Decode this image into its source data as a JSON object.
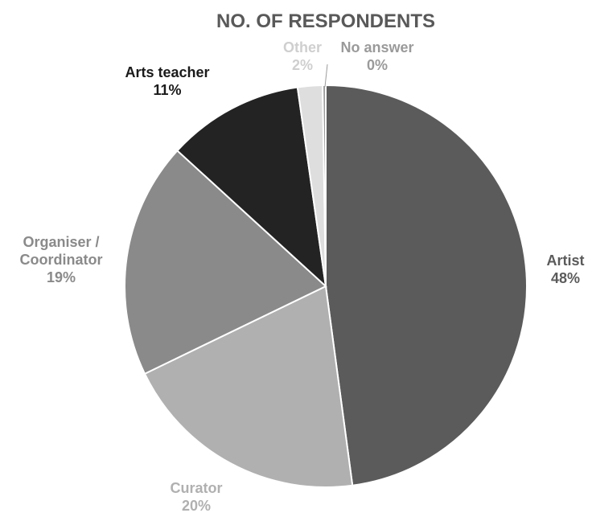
{
  "chart_data": {
    "type": "pie",
    "title": "NO. OF RESPONDENTS",
    "start_angle_deg": 0,
    "direction": "clockwise",
    "slices": [
      {
        "name": "Artist",
        "line1": "Artist",
        "line2": "",
        "pct": "48%",
        "value": 48,
        "color": "#5b5b5b",
        "label_color": "#5b5b5b"
      },
      {
        "name": "Curator",
        "line1": "Curator",
        "line2": "",
        "pct": "20%",
        "value": 20,
        "color": "#b0b0b0",
        "label_color": "#b0b0b0"
      },
      {
        "name": "Organiser / Coordinator",
        "line1": "Organiser /",
        "line2": "Coordinator",
        "pct": "19%",
        "value": 19,
        "color": "#8a8a8a",
        "label_color": "#8a8a8a"
      },
      {
        "name": "Arts teacher",
        "line1": "Arts teacher",
        "line2": "",
        "pct": "11%",
        "value": 11,
        "color": "#232323",
        "label_color": "#1a1a1a"
      },
      {
        "name": "Other",
        "line1": "Other",
        "line2": "",
        "pct": "2%",
        "value": 2,
        "color": "#dedede",
        "label_color": "#cfcfcf"
      },
      {
        "name": "No answer",
        "line1": "No answer",
        "line2": "",
        "pct": "0%",
        "value": 0.25,
        "color": "#9a9a9a",
        "label_color": "#9a9a9a"
      }
    ]
  }
}
